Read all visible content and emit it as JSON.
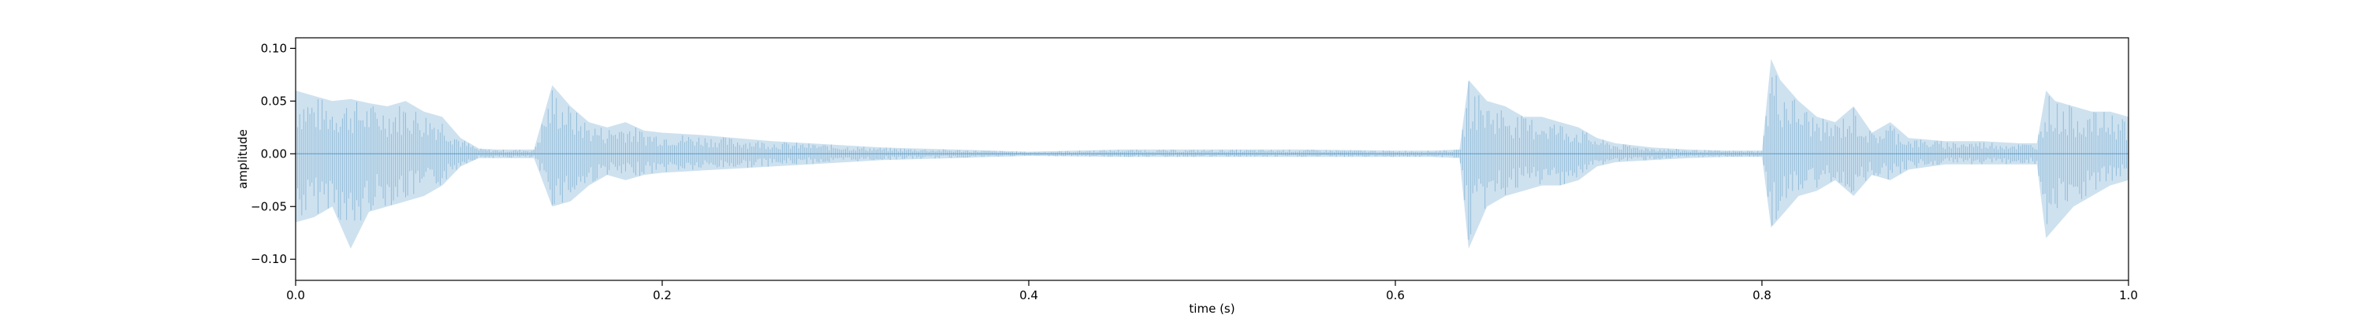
{
  "chart_data": {
    "type": "area",
    "title": "",
    "xlabel": "time (s)",
    "ylabel": "amplitude",
    "xlim": [
      0.0,
      1.0
    ],
    "ylim": [
      -0.12,
      0.11
    ],
    "x_ticks": [
      0.0,
      0.2,
      0.4,
      0.6,
      0.8,
      1.0
    ],
    "x_tick_labels": [
      "0.0",
      "0.2",
      "0.4",
      "0.6",
      "0.8",
      "1.0"
    ],
    "y_ticks": [
      -0.1,
      -0.05,
      0.0,
      0.05,
      0.1
    ],
    "y_tick_labels": [
      "−0.10",
      "−0.05",
      "0.00",
      "0.05",
      "0.10"
    ],
    "grid": false,
    "legend": "none",
    "series_color": "#1f77b4",
    "series": [
      {
        "x": [
          0.0,
          0.01,
          0.02,
          0.03,
          0.04,
          0.05,
          0.06,
          0.07,
          0.08,
          0.09,
          0.1,
          0.11,
          0.12,
          0.13,
          0.14,
          0.15,
          0.16,
          0.17,
          0.18,
          0.19,
          0.2,
          0.22,
          0.24,
          0.26,
          0.28,
          0.3,
          0.32,
          0.34,
          0.36,
          0.38,
          0.4,
          0.45,
          0.5,
          0.55,
          0.6,
          0.62,
          0.635,
          0.64,
          0.65,
          0.66,
          0.67,
          0.68,
          0.69,
          0.7,
          0.71,
          0.72,
          0.74,
          0.76,
          0.78,
          0.79,
          0.8,
          0.805,
          0.81,
          0.82,
          0.83,
          0.84,
          0.85,
          0.86,
          0.87,
          0.88,
          0.9,
          0.92,
          0.94,
          0.95,
          0.955,
          0.96,
          0.97,
          0.98,
          0.99,
          1.0
        ],
        "upper": [
          0.06,
          0.055,
          0.05,
          0.052,
          0.048,
          0.045,
          0.05,
          0.04,
          0.035,
          0.015,
          0.005,
          0.004,
          0.004,
          0.004,
          0.065,
          0.045,
          0.03,
          0.025,
          0.03,
          0.022,
          0.02,
          0.018,
          0.015,
          0.012,
          0.01,
          0.008,
          0.006,
          0.005,
          0.004,
          0.003,
          0.002,
          0.004,
          0.004,
          0.004,
          0.003,
          0.003,
          0.004,
          0.07,
          0.05,
          0.045,
          0.035,
          0.035,
          0.03,
          0.025,
          0.015,
          0.01,
          0.006,
          0.004,
          0.003,
          0.003,
          0.003,
          0.09,
          0.07,
          0.05,
          0.035,
          0.03,
          0.045,
          0.02,
          0.03,
          0.015,
          0.012,
          0.012,
          0.01,
          0.01,
          0.06,
          0.05,
          0.045,
          0.04,
          0.04,
          0.035
        ],
        "lower": [
          -0.065,
          -0.06,
          -0.05,
          -0.09,
          -0.055,
          -0.05,
          -0.045,
          -0.04,
          -0.03,
          -0.012,
          -0.004,
          -0.004,
          -0.004,
          -0.004,
          -0.05,
          -0.045,
          -0.03,
          -0.02,
          -0.025,
          -0.02,
          -0.018,
          -0.016,
          -0.014,
          -0.012,
          -0.01,
          -0.008,
          -0.006,
          -0.005,
          -0.004,
          -0.003,
          -0.002,
          -0.003,
          -0.003,
          -0.003,
          -0.003,
          -0.003,
          -0.004,
          -0.09,
          -0.05,
          -0.04,
          -0.035,
          -0.03,
          -0.03,
          -0.025,
          -0.012,
          -0.008,
          -0.006,
          -0.004,
          -0.003,
          -0.003,
          -0.003,
          -0.07,
          -0.06,
          -0.04,
          -0.035,
          -0.025,
          -0.04,
          -0.02,
          -0.025,
          -0.015,
          -0.01,
          -0.01,
          -0.01,
          -0.01,
          -0.08,
          -0.07,
          -0.05,
          -0.04,
          -0.03,
          -0.025
        ]
      }
    ]
  }
}
